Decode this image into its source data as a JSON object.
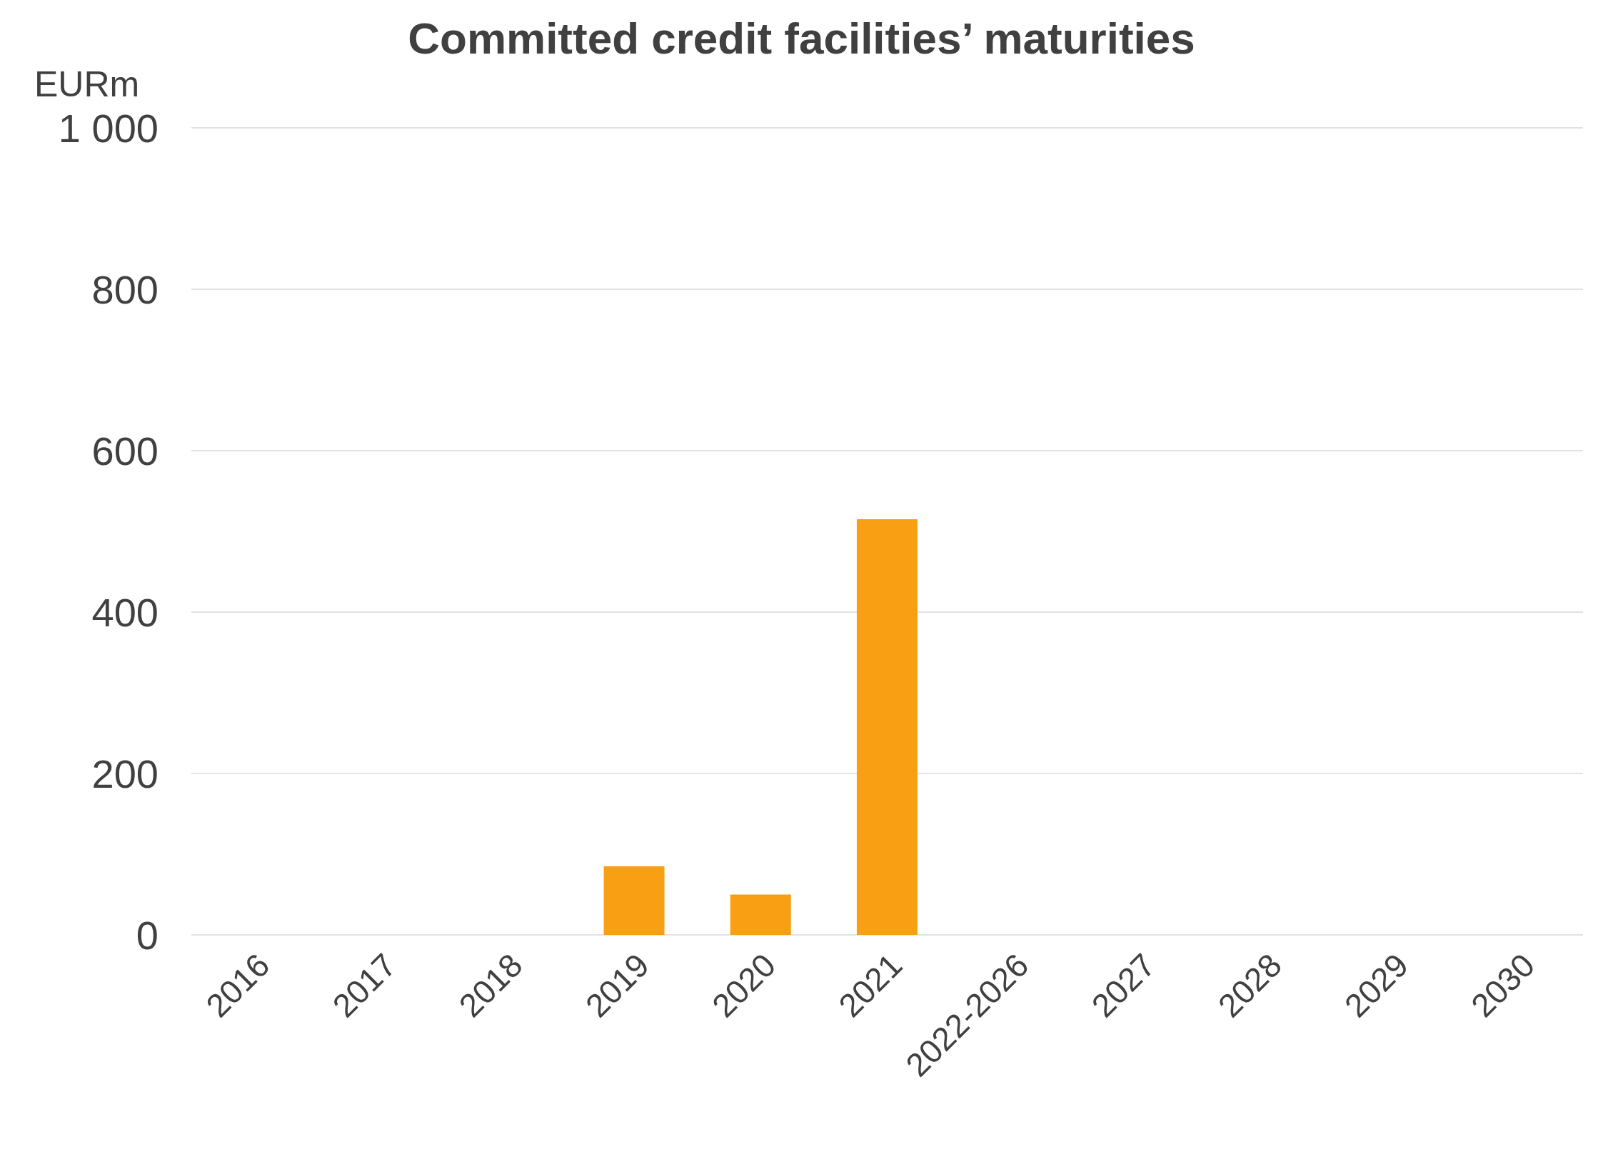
{
  "chart_data": {
    "type": "bar",
    "title": "Committed credit facilities’ maturities",
    "ylabel": "EURm",
    "categories": [
      "2016",
      "2017",
      "2018",
      "2019",
      "2020",
      "2021",
      "2022-2026",
      "2027",
      "2028",
      "2029",
      "2030"
    ],
    "values": [
      0,
      0,
      0,
      85,
      50,
      515,
      0,
      0,
      0,
      0,
      0
    ],
    "color": "#f99f13",
    "ylim": [
      0,
      1000
    ],
    "yticks": [
      0,
      200,
      400,
      600,
      800,
      {
        "value": 1000,
        "label": "1 000"
      }
    ],
    "grid": "y"
  }
}
